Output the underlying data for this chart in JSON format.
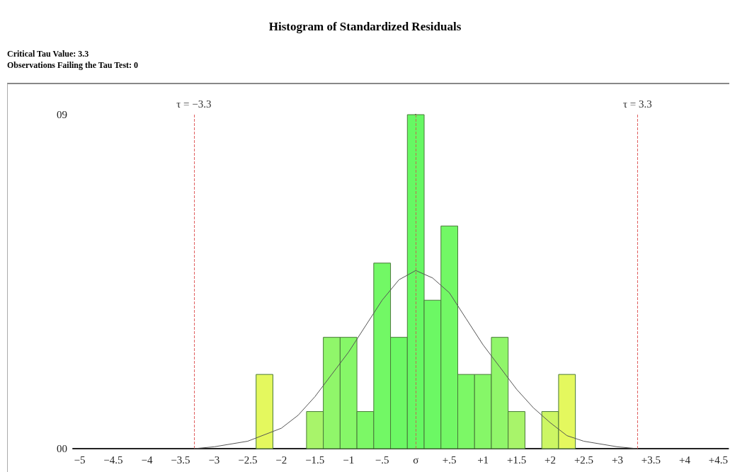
{
  "chart_data": {
    "type": "histogram",
    "title": "Histogram of Standardized Residuals",
    "annotations": [
      "Critical Tau Value: 3.3",
      "Observations Failing the Tau Test: 0"
    ],
    "bins": [
      -2.375,
      -2.125,
      -1.875,
      -1.625,
      -1.375,
      -1.125,
      -0.875,
      -0.625,
      -0.375,
      -0.125,
      0.125,
      0.375,
      0.625,
      0.875,
      1.125,
      1.375,
      1.625,
      1.875,
      2.125,
      2.375
    ],
    "values": [
      2,
      0,
      0,
      1,
      3,
      3,
      1,
      5,
      3,
      9,
      4,
      6,
      2,
      2,
      3,
      1,
      0,
      1,
      2
    ],
    "colors": [
      "#e4f85e",
      "#d8f760",
      "#ccf664",
      "#a8f46a",
      "#90f66a",
      "#86f768",
      "#7cf866",
      "#72f865",
      "#6cf864",
      "#66f863",
      "#6cf864",
      "#72f865",
      "#7cf866",
      "#86f768",
      "#90f66a",
      "#a8f46a",
      "#ccf664",
      "#ccf664",
      "#e4f85e"
    ],
    "series": [
      {
        "type": "line",
        "color": "#555555",
        "x": [
          -3.3,
          -3,
          -2.5,
          -2,
          -1.75,
          -1.5,
          -1.25,
          -1,
          -0.75,
          -0.5,
          -0.25,
          0,
          0.25,
          0.5,
          0.75,
          1,
          1.25,
          1.5,
          1.75,
          2,
          2.25,
          2.5,
          3,
          3.3
        ],
        "values": [
          0,
          0.05,
          0.2,
          0.55,
          0.9,
          1.4,
          2.0,
          2.6,
          3.3,
          4.0,
          4.55,
          4.8,
          4.6,
          4.2,
          3.5,
          2.8,
          2.2,
          1.6,
          1.1,
          0.7,
          0.35,
          0.2,
          0.05,
          0
        ]
      }
    ],
    "ref_lines": [
      {
        "axis": "x",
        "value": -3.3,
        "label": "τ = −3.3",
        "color": "#e06060",
        "line_style": "dashed"
      },
      {
        "axis": "x",
        "value": 0,
        "label": null,
        "color": "#c07050",
        "line_style": "dashed"
      },
      {
        "axis": "x",
        "value": 3.3,
        "label": "τ = 3.3",
        "color": "#e06060",
        "line_style": "dashed"
      }
    ],
    "xlim": [
      -5.1,
      4.65
    ],
    "xticks": [
      {
        "value": -5,
        "label": "−5"
      },
      {
        "value": -4.5,
        "label": "−4.5"
      },
      {
        "value": -4,
        "label": "−4"
      },
      {
        "value": -3.5,
        "label": "−3.5"
      },
      {
        "value": -3,
        "label": "−3"
      },
      {
        "value": -2.5,
        "label": "−2.5"
      },
      {
        "value": -2,
        "label": "−2"
      },
      {
        "value": -1.5,
        "label": "−1.5"
      },
      {
        "value": -1,
        "label": "−1"
      },
      {
        "value": -0.5,
        "label": "−.5"
      },
      {
        "value": 0,
        "label": "σ"
      },
      {
        "value": 0.5,
        "label": "+.5"
      },
      {
        "value": 1,
        "label": "+1"
      },
      {
        "value": 1.5,
        "label": "+1.5"
      },
      {
        "value": 2,
        "label": "+2"
      },
      {
        "value": 2.5,
        "label": "+2.5"
      },
      {
        "value": 3,
        "label": "+3"
      },
      {
        "value": 3.5,
        "label": "+3.5"
      },
      {
        "value": 4,
        "label": "+4"
      },
      {
        "value": 4.5,
        "label": "+4.5"
      }
    ],
    "ylim": [
      0,
      9
    ],
    "yticks": [
      {
        "value": 0,
        "label": "00"
      },
      {
        "value": 9,
        "label": "09"
      }
    ],
    "grid": false,
    "marker": "none",
    "line_style": "solid"
  }
}
